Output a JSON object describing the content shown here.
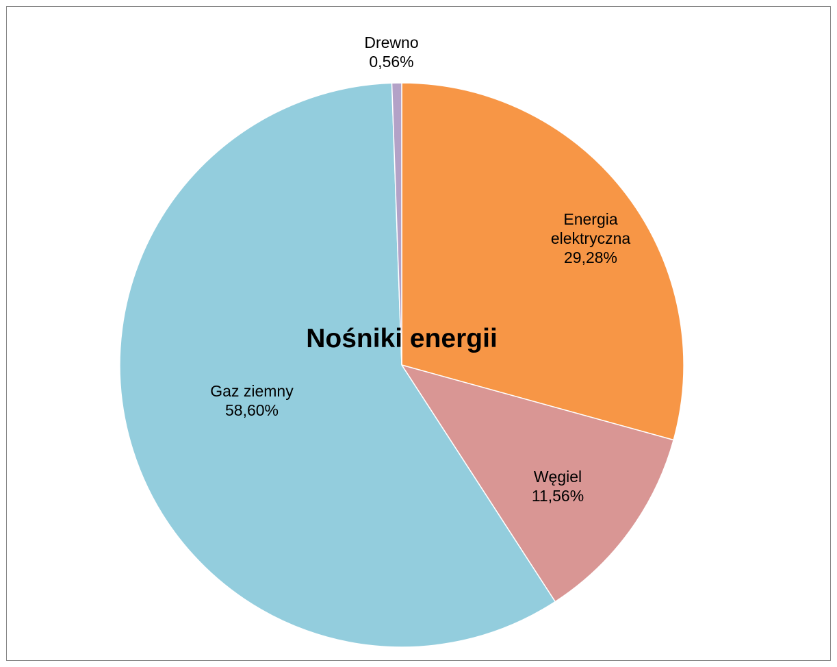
{
  "chart_data": {
    "type": "pie",
    "title": "Nośniki energii",
    "categories": [
      "Energia elektryczna",
      "Węgiel",
      "Gaz ziemny",
      "Drewno"
    ],
    "values": [
      29.28,
      11.56,
      58.6,
      0.56
    ],
    "value_labels": [
      "29,28%",
      "11,56%",
      "58,60%",
      "0,56%"
    ],
    "colors": [
      "#f79646",
      "#d99694",
      "#93cddd",
      "#b3a2c7"
    ]
  }
}
